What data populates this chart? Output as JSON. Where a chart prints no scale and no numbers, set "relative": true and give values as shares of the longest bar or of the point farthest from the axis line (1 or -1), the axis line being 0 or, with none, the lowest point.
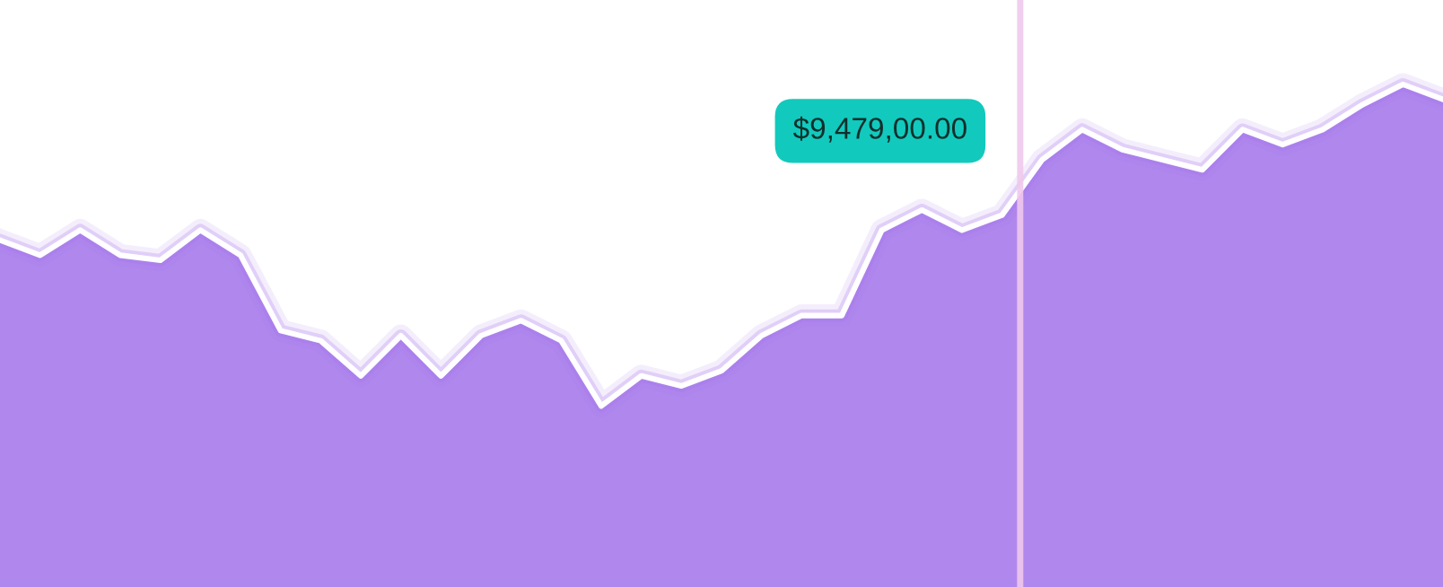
{
  "chart_data": {
    "type": "area",
    "relative": true,
    "categories": [
      null,
      null,
      null,
      null,
      null,
      null,
      null,
      null,
      null,
      null,
      null,
      null,
      null,
      null,
      null,
      null,
      null,
      null,
      null,
      null,
      null,
      null,
      null,
      null,
      null,
      null,
      null,
      null,
      null,
      null,
      null,
      null,
      null,
      null,
      null,
      null,
      null
    ],
    "series": [
      {
        "color": "#a273ea",
        "values": [
          0.69,
          0.66,
          0.71,
          0.66,
          0.65,
          0.71,
          0.66,
          0.51,
          0.49,
          0.42,
          0.5,
          0.42,
          0.5,
          0.53,
          0.49,
          0.36,
          0.42,
          0.4,
          0.43,
          0.5,
          0.54,
          0.54,
          0.71,
          0.75,
          0.71,
          0.74,
          0.85,
          0.91,
          0.87,
          0.85,
          0.83,
          0.91,
          0.88,
          0.91,
          0.96,
          1,
          0.97
        ]
      }
    ],
    "annotations": [
      "$9,479,00.00"
    ],
    "grid": false,
    "legend": false
  }
}
